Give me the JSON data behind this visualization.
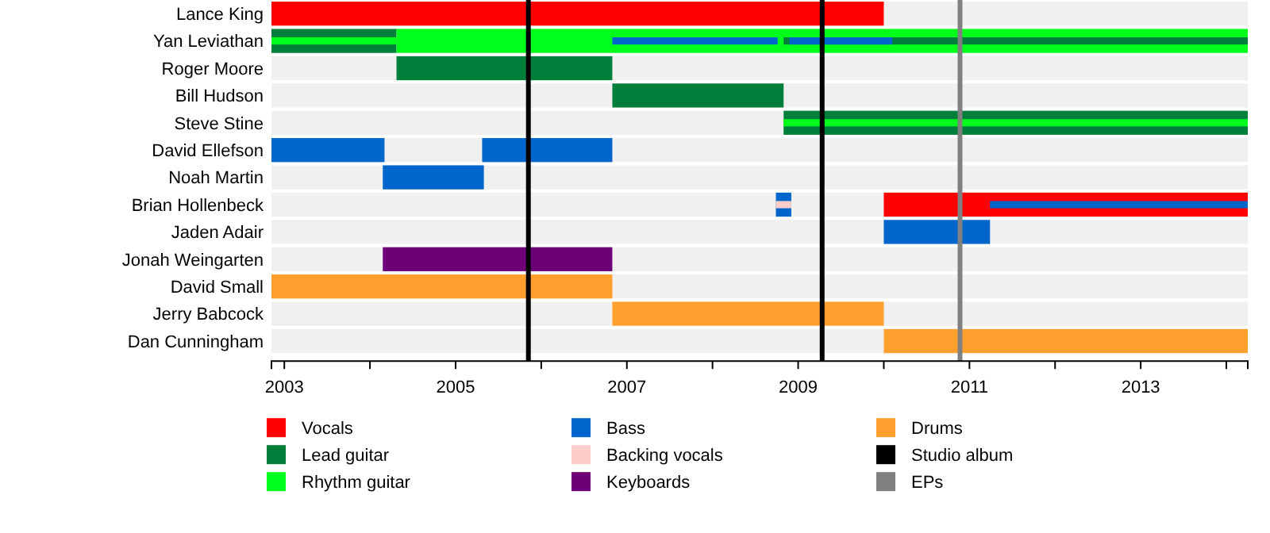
{
  "chart_data": {
    "type": "bar",
    "orientation": "horizontal",
    "categories": [
      "Lance King",
      "Yan Leviathan",
      "Roger Moore",
      "Bill Hudson",
      "Steve Stine",
      "David Ellefson",
      "Noah Martin",
      "Brian Hollenbeck",
      "Jaden Adair",
      "Jonah Weingarten",
      "David Small",
      "Jerry Babcock",
      "Dan Cunningham"
    ],
    "xlim": [
      2002.85,
      2014.25
    ],
    "xticks": [
      2003,
      {
        "value": 2004,
        "label": null
      },
      2005,
      {
        "value": 2006,
        "label": null
      },
      2007,
      {
        "value": 2008,
        "label": null
      },
      2009,
      {
        "value": 2010,
        "label": null
      },
      2011,
      {
        "value": 2012,
        "label": null
      },
      2013,
      {
        "value": 2014,
        "label": null
      }
    ],
    "legend": "bottom",
    "series": [
      {
        "name": "Vocals",
        "color": "#ff0000",
        "base": [
          2002.85,
          null,
          null,
          null,
          null,
          null,
          null,
          2010.0,
          null,
          null,
          null,
          null,
          null
        ],
        "values": [
          7.15,
          null,
          null,
          null,
          null,
          null,
          null,
          4.25,
          null,
          null,
          null,
          null,
          null
        ]
      },
      {
        "name": "Lead guitar",
        "color": "#007f3a",
        "base": [
          null,
          2002.85,
          2004.31,
          2006.83,
          2008.83,
          null,
          null,
          null,
          null,
          null,
          null,
          null,
          null
        ],
        "values": [
          null,
          1.46,
          2.52,
          2.0,
          5.42,
          null,
          null,
          null,
          null,
          null,
          null,
          null,
          null
        ]
      },
      {
        "name": "Rhythm guitar",
        "color": "#00ff1a",
        "base": [
          null,
          2004.31,
          null,
          null,
          null,
          null,
          null,
          null,
          null,
          null,
          null,
          null,
          null
        ],
        "values": [
          null,
          9.94,
          null,
          null,
          null,
          null,
          null,
          null,
          null,
          null,
          null,
          null,
          null
        ]
      },
      {
        "name": "Bass",
        "color": "#0066cc",
        "base": [
          null,
          null,
          null,
          null,
          null,
          2002.85,
          2004.15,
          2008.74,
          2010.0,
          null,
          null,
          null,
          null
        ],
        "values": [
          null,
          null,
          null,
          null,
          null,
          1.32,
          1.18,
          0.18,
          1.24,
          null,
          null,
          null,
          null
        ]
      },
      {
        "name": "Backing vocals",
        "color": "#ffcccc",
        "base": [
          null,
          null,
          null,
          null,
          null,
          null,
          null,
          2008.74,
          null,
          null,
          null,
          null,
          null
        ],
        "values": [
          null,
          null,
          null,
          null,
          null,
          null,
          null,
          0.18,
          null,
          null,
          null,
          null,
          null
        ]
      },
      {
        "name": "Keyboards",
        "color": "#6e0077",
        "base": [
          null,
          null,
          null,
          null,
          null,
          null,
          null,
          null,
          null,
          2004.15,
          null,
          null,
          null
        ],
        "values": [
          null,
          null,
          null,
          null,
          null,
          null,
          null,
          null,
          null,
          2.68,
          null,
          null,
          null
        ]
      },
      {
        "name": "Drums",
        "color": "#ffa02e",
        "base": [
          null,
          null,
          null,
          null,
          null,
          null,
          null,
          null,
          null,
          null,
          2002.85,
          2006.83,
          2010.0
        ],
        "values": [
          null,
          null,
          null,
          null,
          null,
          null,
          null,
          null,
          null,
          null,
          3.98,
          3.17,
          4.25
        ]
      },
      {
        "color": "#0066cc",
        "base": [
          null,
          null,
          null,
          null,
          null,
          2005.31,
          null,
          null,
          null,
          null,
          null,
          null,
          null
        ],
        "values": [
          null,
          null,
          null,
          null,
          null,
          1.52,
          null,
          null,
          null,
          null,
          null,
          null,
          null
        ]
      },
      {
        "color": "#00ff1a",
        "base": [
          null,
          2002.85,
          null,
          null,
          2008.83,
          null,
          null,
          null,
          null,
          null,
          null,
          null,
          null
        ],
        "values": [
          null,
          1.46,
          null,
          null,
          5.42,
          null,
          null,
          null,
          null,
          null,
          null,
          null,
          null
        ]
      },
      {
        "color": "#007f3a",
        "base": [
          null,
          2008.83,
          null,
          null,
          null,
          null,
          null,
          null,
          null,
          null,
          null,
          null,
          null
        ],
        "values": [
          null,
          5.42,
          null,
          null,
          null,
          null,
          null,
          null,
          null,
          null,
          null,
          null,
          null
        ]
      },
      {
        "color": "#0066cc",
        "base": [
          null,
          2006.83,
          null,
          null,
          null,
          null,
          null,
          2011.24,
          null,
          null,
          null,
          null,
          null
        ],
        "values": [
          null,
          1.93,
          null,
          null,
          null,
          null,
          null,
          3.01,
          null,
          null,
          null,
          null,
          null
        ]
      },
      {
        "color": "#0066cc",
        "base": [
          null,
          2008.9,
          null,
          null,
          null,
          null,
          null,
          null,
          null,
          null,
          null,
          null,
          null
        ],
        "values": [
          null,
          1.2,
          null,
          null,
          null,
          null,
          null,
          null,
          null,
          null,
          null,
          null,
          null
        ]
      }
    ],
    "ref_lines": [
      {
        "axis": "x",
        "value": 2005.85,
        "label": "Studio album",
        "color": "#000000"
      },
      {
        "axis": "x",
        "value": 2009.28,
        "label": null,
        "color": "#000000"
      },
      {
        "axis": "x",
        "value": 2010.89,
        "label": "EPs",
        "color": "#808080"
      }
    ]
  }
}
